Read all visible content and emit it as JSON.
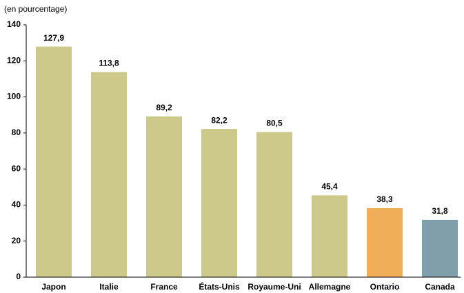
{
  "chart_data": {
    "type": "bar",
    "y_label": "(en pourcentage)",
    "categories": [
      "Japon",
      "Italie",
      "France",
      "États-Unis",
      "Royaume-Uni",
      "Allemagne",
      "Ontario",
      "Canada"
    ],
    "values": [
      127.9,
      113.8,
      89.2,
      82.2,
      80.5,
      45.4,
      38.3,
      31.8
    ],
    "value_labels": [
      "127,9",
      "113,8",
      "89,2",
      "82,2",
      "80,5",
      "45,4",
      "38,3",
      "31,8"
    ],
    "colors": [
      "#cdc98a",
      "#cdc98a",
      "#cdc98a",
      "#cdc98a",
      "#cdc98a",
      "#cdc98a",
      "#f0ae5a",
      "#7f9faa"
    ],
    "ylim": [
      0,
      140
    ],
    "yticks": [
      0,
      20,
      40,
      60,
      80,
      100,
      120,
      140
    ],
    "grid": false
  }
}
